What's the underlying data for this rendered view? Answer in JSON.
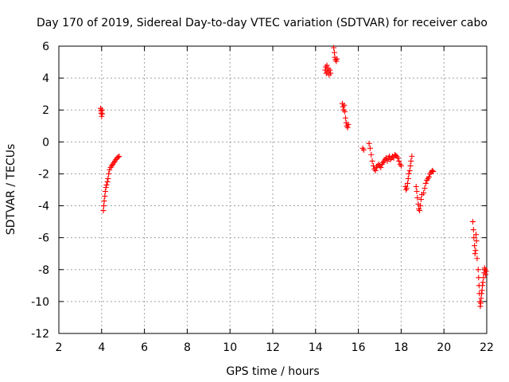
{
  "chart_data": {
    "type": "scatter",
    "title": "Day 170 of 2019, Sidereal Day-to-day VTEC variation (SDTVAR) for receiver cabo",
    "xlabel": "GPS time / hours",
    "ylabel": "SDTVAR / TECUs",
    "xlim": [
      2,
      22
    ],
    "ylim": [
      -12,
      6
    ],
    "x_ticks": [
      2,
      4,
      6,
      8,
      10,
      12,
      14,
      16,
      18,
      20,
      22
    ],
    "y_ticks": [
      -12,
      -10,
      -8,
      -6,
      -4,
      -2,
      0,
      2,
      4,
      6
    ],
    "grid": true,
    "marker": "+",
    "color": "#ff0000",
    "series": [
      {
        "name": "SDTVAR",
        "points": [
          [
            3.95,
            2.1
          ],
          [
            3.97,
            1.95
          ],
          [
            3.98,
            1.8
          ],
          [
            4.0,
            1.6
          ],
          [
            4.02,
            2.0
          ],
          [
            4.03,
            1.75
          ],
          [
            4.08,
            -4.3
          ],
          [
            4.1,
            -4.0
          ],
          [
            4.12,
            -3.7
          ],
          [
            4.15,
            -3.4
          ],
          [
            4.17,
            -3.1
          ],
          [
            4.2,
            -2.85
          ],
          [
            4.23,
            -2.7
          ],
          [
            4.27,
            -2.5
          ],
          [
            4.3,
            -2.3
          ],
          [
            4.33,
            -2.0
          ],
          [
            4.37,
            -1.75
          ],
          [
            4.42,
            -1.6
          ],
          [
            4.47,
            -1.5
          ],
          [
            4.52,
            -1.4
          ],
          [
            4.57,
            -1.3
          ],
          [
            4.62,
            -1.2
          ],
          [
            4.67,
            -1.1
          ],
          [
            4.72,
            -1.0
          ],
          [
            4.77,
            -0.95
          ],
          [
            4.82,
            -0.9
          ],
          [
            14.45,
            4.5
          ],
          [
            14.48,
            4.7
          ],
          [
            14.5,
            4.3
          ],
          [
            14.53,
            4.8
          ],
          [
            14.56,
            4.4
          ],
          [
            14.6,
            4.6
          ],
          [
            14.63,
            4.2
          ],
          [
            14.67,
            4.5
          ],
          [
            14.7,
            4.3
          ],
          [
            14.85,
            5.9
          ],
          [
            14.88,
            5.6
          ],
          [
            14.9,
            5.3
          ],
          [
            14.93,
            5.15
          ],
          [
            14.97,
            5.05
          ],
          [
            15.0,
            5.2
          ],
          [
            15.25,
            2.4
          ],
          [
            15.28,
            2.2
          ],
          [
            15.31,
            2.0
          ],
          [
            15.34,
            2.3
          ],
          [
            15.37,
            1.9
          ],
          [
            15.4,
            1.5
          ],
          [
            15.43,
            1.2
          ],
          [
            15.46,
            1.0
          ],
          [
            15.5,
            0.9
          ],
          [
            15.53,
            1.1
          ],
          [
            16.2,
            -0.4
          ],
          [
            16.25,
            -0.5
          ],
          [
            16.5,
            -0.1
          ],
          [
            16.55,
            -0.4
          ],
          [
            16.6,
            -0.8
          ],
          [
            16.65,
            -1.2
          ],
          [
            16.7,
            -1.5
          ],
          [
            16.75,
            -1.7
          ],
          [
            16.8,
            -1.8
          ],
          [
            16.85,
            -1.6
          ],
          [
            16.9,
            -1.5
          ],
          [
            16.95,
            -1.4
          ],
          [
            17.0,
            -1.5
          ],
          [
            17.05,
            -1.6
          ],
          [
            17.1,
            -1.4
          ],
          [
            17.15,
            -1.3
          ],
          [
            17.2,
            -1.2
          ],
          [
            17.25,
            -1.1
          ],
          [
            17.3,
            -1.0
          ],
          [
            17.35,
            -1.2
          ],
          [
            17.4,
            -1.0
          ],
          [
            17.45,
            -0.9
          ],
          [
            17.5,
            -1.1
          ],
          [
            17.55,
            -1.0
          ],
          [
            17.6,
            -0.9
          ],
          [
            17.65,
            -1.0
          ],
          [
            17.7,
            -0.8
          ],
          [
            17.75,
            -0.85
          ],
          [
            17.8,
            -0.9
          ],
          [
            17.85,
            -1.0
          ],
          [
            17.9,
            -1.2
          ],
          [
            17.95,
            -1.4
          ],
          [
            18.0,
            -1.5
          ],
          [
            18.2,
            -2.8
          ],
          [
            18.23,
            -3.0
          ],
          [
            18.26,
            -2.9
          ],
          [
            18.3,
            -2.6
          ],
          [
            18.33,
            -2.3
          ],
          [
            18.36,
            -2.0
          ],
          [
            18.4,
            -1.8
          ],
          [
            18.43,
            -1.5
          ],
          [
            18.46,
            -1.2
          ],
          [
            18.5,
            -0.9
          ],
          [
            18.7,
            -2.8
          ],
          [
            18.73,
            -3.1
          ],
          [
            18.76,
            -3.5
          ],
          [
            18.8,
            -3.9
          ],
          [
            18.83,
            -4.2
          ],
          [
            18.86,
            -4.3
          ],
          [
            18.9,
            -4.0
          ],
          [
            18.93,
            -3.6
          ],
          [
            18.97,
            -3.3
          ],
          [
            19.05,
            -3.2
          ],
          [
            19.1,
            -2.9
          ],
          [
            19.15,
            -2.6
          ],
          [
            19.2,
            -2.4
          ],
          [
            19.25,
            -2.3
          ],
          [
            19.3,
            -2.2
          ],
          [
            19.35,
            -2.0
          ],
          [
            19.4,
            -1.9
          ],
          [
            19.45,
            -1.8
          ],
          [
            19.5,
            -1.85
          ],
          [
            21.35,
            -5.0
          ],
          [
            21.38,
            -5.5
          ],
          [
            21.4,
            -6.0
          ],
          [
            21.43,
            -6.5
          ],
          [
            21.45,
            -7.0
          ],
          [
            21.48,
            -6.8
          ],
          [
            21.5,
            -5.8
          ],
          [
            21.52,
            -6.2
          ],
          [
            21.55,
            -7.3
          ],
          [
            21.6,
            -8.0
          ],
          [
            21.62,
            -8.5
          ],
          [
            21.64,
            -9.0
          ],
          [
            21.66,
            -9.5
          ],
          [
            21.68,
            -10.0
          ],
          [
            21.7,
            -10.3
          ],
          [
            21.72,
            -10.1
          ],
          [
            21.74,
            -9.8
          ],
          [
            21.76,
            -9.5
          ],
          [
            21.78,
            -9.3
          ],
          [
            21.8,
            -9.0
          ],
          [
            21.82,
            -8.8
          ],
          [
            21.85,
            -8.5
          ],
          [
            21.88,
            -8.2
          ],
          [
            21.9,
            -7.9
          ],
          [
            21.92,
            -8.0
          ],
          [
            21.95,
            -8.3
          ],
          [
            21.97,
            -8.1
          ]
        ]
      }
    ]
  }
}
